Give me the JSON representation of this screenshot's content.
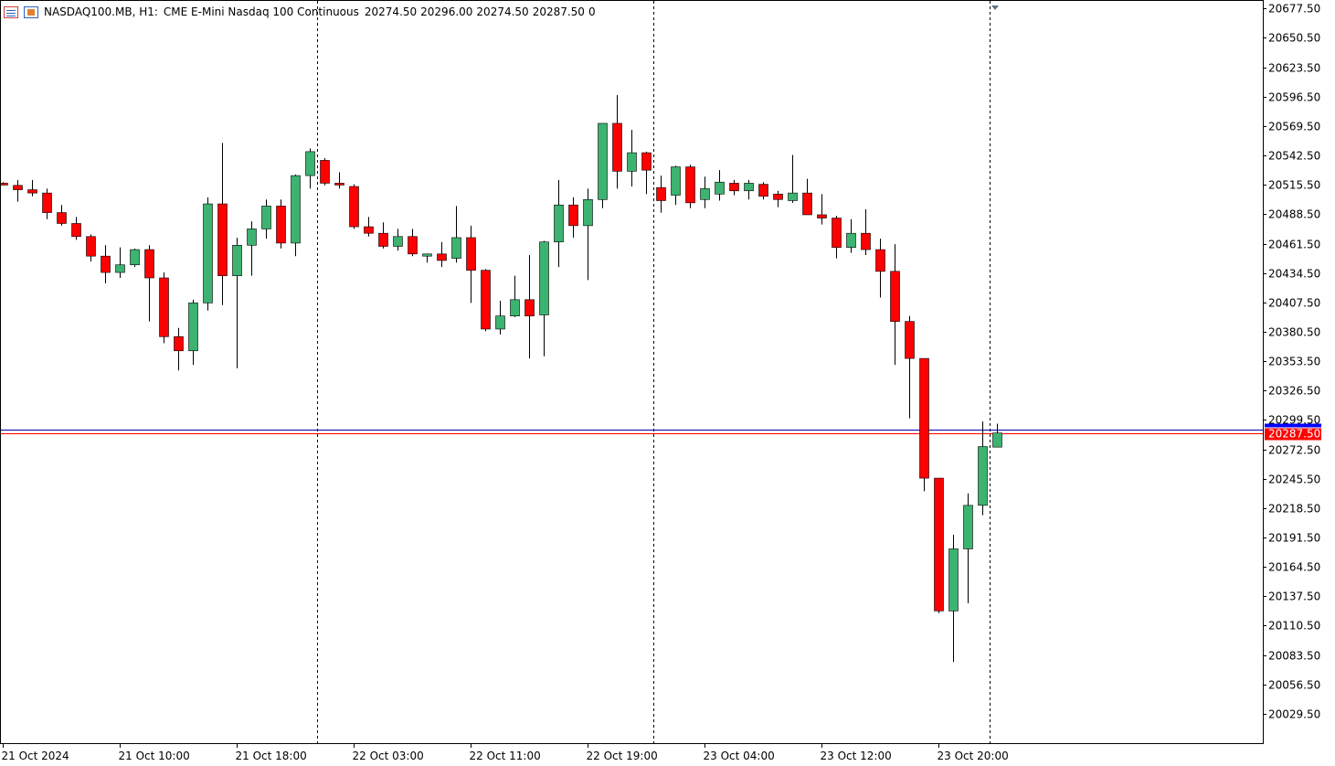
{
  "header": {
    "symbol": "NASDAQ100.MB, H1:",
    "description": "CME E-Mini Nasdaq 100 Continuous",
    "open": "20274.50",
    "high": "20296.00",
    "low": "20274.50",
    "close": "20287.50",
    "volume": "0",
    "icons": [
      "list-icon",
      "properties-icon"
    ]
  },
  "colors": {
    "bull": "#3cb371",
    "bear": "#ff0000",
    "bid_line": "#ff0000",
    "ask_line": "#0000aa",
    "price_label_bg": "#ff0000",
    "ask_label_bg": "#0000ff"
  },
  "chart_data": {
    "type": "candlestick",
    "ylim": [
      20002.5,
      20684.5
    ],
    "y_ticks": [
      "20677.50",
      "20650.50",
      "20623.50",
      "20596.50",
      "20569.50",
      "20542.50",
      "20515.50",
      "20488.50",
      "20461.50",
      "20434.50",
      "20407.50",
      "20380.50",
      "20353.50",
      "20326.50",
      "20299.50",
      "20272.50",
      "20245.50",
      "20218.50",
      "20191.50",
      "20164.50",
      "20137.50",
      "20110.50",
      "20083.50",
      "20056.50",
      "20029.50"
    ],
    "x_labels": [
      "21 Oct 2024",
      "21 Oct 10:00",
      "21 Oct 18:00",
      "22 Oct 03:00",
      "22 Oct 11:00",
      "22 Oct 19:00",
      "23 Oct 04:00",
      "23 Oct 12:00",
      "23 Oct 20:00"
    ],
    "x_label_index": [
      0,
      8,
      16,
      24,
      32,
      40,
      48,
      56,
      64
    ],
    "day_separator_index": [
      21.5,
      44.5,
      67.5
    ],
    "current_price": "20287.50",
    "current_price_value": 20287.5,
    "ask_price_value": 20290.5,
    "candles": [
      {
        "o": 20517,
        "h": 20518,
        "l": 20515,
        "c": 20516
      },
      {
        "o": 20515,
        "h": 20520,
        "l": 20500,
        "c": 20511
      },
      {
        "o": 20511,
        "h": 20520,
        "l": 20505,
        "c": 20508
      },
      {
        "o": 20508,
        "h": 20512,
        "l": 20484,
        "c": 20490
      },
      {
        "o": 20490,
        "h": 20497,
        "l": 20478,
        "c": 20480
      },
      {
        "o": 20480,
        "h": 20486,
        "l": 20465,
        "c": 20468
      },
      {
        "o": 20468,
        "h": 20470,
        "l": 20445,
        "c": 20450
      },
      {
        "o": 20450,
        "h": 20460,
        "l": 20425,
        "c": 20435
      },
      {
        "o": 20435,
        "h": 20458,
        "l": 20430,
        "c": 20442
      },
      {
        "o": 20442,
        "h": 20457,
        "l": 20440,
        "c": 20456
      },
      {
        "o": 20456,
        "h": 20460,
        "l": 20390,
        "c": 20430
      },
      {
        "o": 20430,
        "h": 20435,
        "l": 20370,
        "c": 20376
      },
      {
        "o": 20376,
        "h": 20384,
        "l": 20345,
        "c": 20363
      },
      {
        "o": 20363,
        "h": 20410,
        "l": 20350,
        "c": 20407
      },
      {
        "o": 20407,
        "h": 20504,
        "l": 20400,
        "c": 20498
      },
      {
        "o": 20498,
        "h": 20554,
        "l": 20405,
        "c": 20432
      },
      {
        "o": 20432,
        "h": 20467,
        "l": 20347,
        "c": 20460
      },
      {
        "o": 20460,
        "h": 20482,
        "l": 20432,
        "c": 20475
      },
      {
        "o": 20475,
        "h": 20502,
        "l": 20466,
        "c": 20496
      },
      {
        "o": 20496,
        "h": 20502,
        "l": 20457,
        "c": 20462
      },
      {
        "o": 20462,
        "h": 20525,
        "l": 20450,
        "c": 20524
      },
      {
        "o": 20524,
        "h": 20549,
        "l": 20512,
        "c": 20546
      },
      {
        "o": 20538,
        "h": 20540,
        "l": 20515,
        "c": 20517
      },
      {
        "o": 20517,
        "h": 20527,
        "l": 20512,
        "c": 20516
      },
      {
        "o": 20514,
        "h": 20516,
        "l": 20475,
        "c": 20477
      },
      {
        "o": 20477,
        "h": 20486,
        "l": 20468,
        "c": 20471
      },
      {
        "o": 20471,
        "h": 20481,
        "l": 20457,
        "c": 20459
      },
      {
        "o": 20459,
        "h": 20475,
        "l": 20455,
        "c": 20468
      },
      {
        "o": 20468,
        "h": 20475,
        "l": 20450,
        "c": 20452
      },
      {
        "o": 20450,
        "h": 20452,
        "l": 20444,
        "c": 20452
      },
      {
        "o": 20452,
        "h": 20463,
        "l": 20440,
        "c": 20446
      },
      {
        "o": 20448,
        "h": 20496,
        "l": 20444,
        "c": 20467
      },
      {
        "o": 20467,
        "h": 20478,
        "l": 20407,
        "c": 20437
      },
      {
        "o": 20437,
        "h": 20438,
        "l": 20381,
        "c": 20383
      },
      {
        "o": 20383,
        "h": 20409,
        "l": 20378,
        "c": 20395
      },
      {
        "o": 20395,
        "h": 20432,
        "l": 20394,
        "c": 20410
      },
      {
        "o": 20410,
        "h": 20451,
        "l": 20356,
        "c": 20395
      },
      {
        "o": 20396,
        "h": 20464,
        "l": 20358,
        "c": 20463
      },
      {
        "o": 20463,
        "h": 20520,
        "l": 20440,
        "c": 20497
      },
      {
        "o": 20497,
        "h": 20504,
        "l": 20467,
        "c": 20478
      },
      {
        "o": 20478,
        "h": 20512,
        "l": 20428,
        "c": 20502
      },
      {
        "o": 20502,
        "h": 20571,
        "l": 20494,
        "c": 20572
      },
      {
        "o": 20572,
        "h": 20598,
        "l": 20512,
        "c": 20528
      },
      {
        "o": 20528,
        "h": 20566,
        "l": 20514,
        "c": 20545
      },
      {
        "o": 20545,
        "h": 20546,
        "l": 20507,
        "c": 20529
      },
      {
        "o": 20513,
        "h": 20524,
        "l": 20490,
        "c": 20501
      },
      {
        "o": 20506,
        "h": 20533,
        "l": 20497,
        "c": 20532
      },
      {
        "o": 20532,
        "h": 20534,
        "l": 20494,
        "c": 20499
      },
      {
        "o": 20502,
        "h": 20523,
        "l": 20494,
        "c": 20512
      },
      {
        "o": 20507,
        "h": 20529,
        "l": 20501,
        "c": 20518
      },
      {
        "o": 20517,
        "h": 20520,
        "l": 20506,
        "c": 20510
      },
      {
        "o": 20510,
        "h": 20520,
        "l": 20502,
        "c": 20517
      },
      {
        "o": 20516,
        "h": 20518,
        "l": 20502,
        "c": 20505
      },
      {
        "o": 20507,
        "h": 20510,
        "l": 20495,
        "c": 20502
      },
      {
        "o": 20501,
        "h": 20543,
        "l": 20499,
        "c": 20508
      },
      {
        "o": 20508,
        "h": 20521,
        "l": 20492,
        "c": 20488
      },
      {
        "o": 20488,
        "h": 20507,
        "l": 20479,
        "c": 20485
      },
      {
        "o": 20485,
        "h": 20487,
        "l": 20448,
        "c": 20458
      },
      {
        "o": 20458,
        "h": 20484,
        "l": 20453,
        "c": 20471
      },
      {
        "o": 20471,
        "h": 20493,
        "l": 20451,
        "c": 20456
      },
      {
        "o": 20456,
        "h": 20466,
        "l": 20412,
        "c": 20436
      },
      {
        "o": 20436,
        "h": 20461,
        "l": 20350,
        "c": 20390
      },
      {
        "o": 20390,
        "h": 20395,
        "l": 20301,
        "c": 20356
      },
      {
        "o": 20356,
        "h": 20356,
        "l": 20234,
        "c": 20246
      },
      {
        "o": 20246,
        "h": 20246,
        "l": 20122,
        "c": 20124
      },
      {
        "o": 20124,
        "h": 20194,
        "l": 20077,
        "c": 20181
      },
      {
        "o": 20181,
        "h": 20232,
        "l": 20131,
        "c": 20221
      },
      {
        "o": 20221,
        "h": 20298,
        "l": 20212,
        "c": 20275
      },
      {
        "o": 20274.5,
        "h": 20296,
        "l": 20274.5,
        "c": 20287.5
      }
    ]
  }
}
